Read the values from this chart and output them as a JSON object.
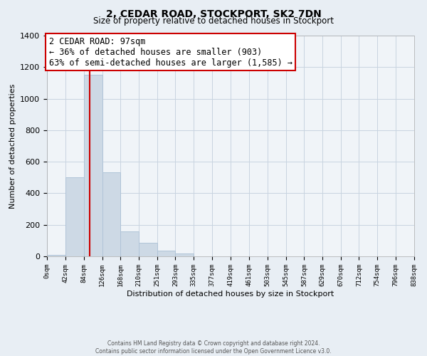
{
  "title": "2, CEDAR ROAD, STOCKPORT, SK2 7DN",
  "subtitle": "Size of property relative to detached houses in Stockport",
  "xlabel": "Distribution of detached houses by size in Stockport",
  "ylabel": "Number of detached properties",
  "bar_color": "#cdd9e5",
  "bar_edge_color": "#b0c4d8",
  "vline_value": 97,
  "vline_color": "#cc0000",
  "bin_edges": [
    0,
    42,
    84,
    126,
    168,
    210,
    251,
    293,
    335,
    377,
    419,
    461,
    503,
    545,
    587,
    629,
    670,
    712,
    754,
    796,
    838
  ],
  "bin_labels": [
    "0sqm",
    "42sqm",
    "84sqm",
    "126sqm",
    "168sqm",
    "210sqm",
    "251sqm",
    "293sqm",
    "335sqm",
    "377sqm",
    "419sqm",
    "461sqm",
    "503sqm",
    "545sqm",
    "587sqm",
    "629sqm",
    "670sqm",
    "712sqm",
    "754sqm",
    "796sqm",
    "838sqm"
  ],
  "bar_heights": [
    10,
    500,
    1150,
    535,
    160,
    85,
    35,
    18,
    0,
    0,
    0,
    0,
    0,
    0,
    0,
    0,
    0,
    0,
    0,
    0
  ],
  "ylim": [
    0,
    1400
  ],
  "yticks": [
    0,
    200,
    400,
    600,
    800,
    1000,
    1200,
    1400
  ],
  "annotation_line1": "2 CEDAR ROAD: 97sqm",
  "annotation_line2": "← 36% of detached houses are smaller (903)",
  "annotation_line3": "63% of semi-detached houses are larger (1,585) →",
  "footer_line1": "Contains HM Land Registry data © Crown copyright and database right 2024.",
  "footer_line2": "Contains public sector information licensed under the Open Government Licence v3.0.",
  "background_color": "#e8eef4",
  "plot_bg_color": "#f0f4f8",
  "grid_color": "#c8d4e0"
}
